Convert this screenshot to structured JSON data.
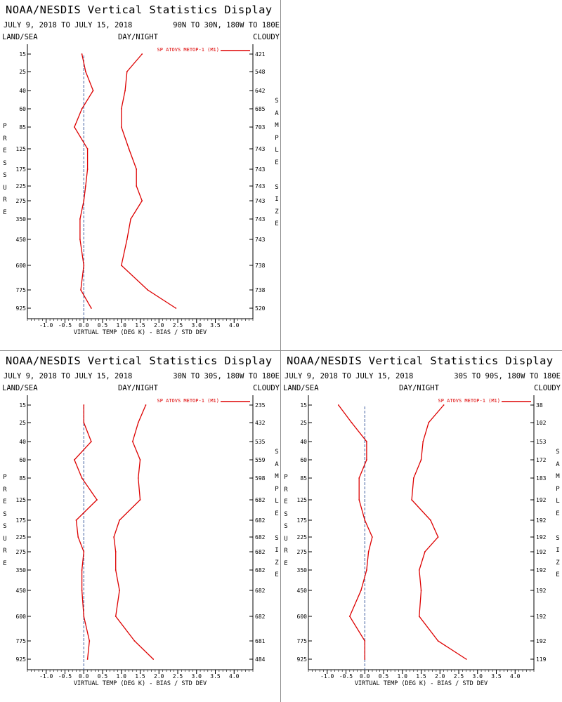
{
  "colors": {
    "line": "#dd0000",
    "axis": "#000000",
    "zero_line": "#4060a0"
  },
  "legend_sample": "SP ATOVS METOP-1 (M1)",
  "panels": [
    {
      "title": "NOAA/NESDIS Vertical Statistics Display",
      "dates": "JULY 9, 2018 TO JULY 15, 2018",
      "region": "90N TO 30N, 180W TO 180E",
      "land_sea": "LAND/SEA",
      "day_night": "DAY/NIGHT",
      "cloud": "CLOUDY",
      "left_label": [
        "P",
        "R",
        "E",
        "S",
        "S",
        "U",
        "R",
        "E"
      ],
      "right_label": [
        "S",
        "A",
        "M",
        "P",
        "L",
        "E",
        "",
        "S",
        "I",
        "Z",
        "E"
      ]
    },
    {
      "title": "NOAA/NESDIS Vertical Statistics Display",
      "dates": "JULY 9, 2018 TO JULY 15, 2018",
      "region": "30N TO 30S, 180W TO 180E",
      "land_sea": "LAND/SEA",
      "day_night": "DAY/NIGHT",
      "cloud": "CLOUDY",
      "left_label": [
        "P",
        "R",
        "E",
        "S",
        "S",
        "U",
        "R",
        "E"
      ],
      "right_label": [
        "S",
        "A",
        "M",
        "P",
        "L",
        "E",
        "",
        "S",
        "I",
        "Z",
        "E"
      ]
    },
    {
      "title": "NOAA/NESDIS Vertical Statistics Display",
      "dates": "JULY 9, 2018 TO JULY 15, 2018",
      "region": "30S TO 90S, 180W TO 180E",
      "land_sea": "LAND/SEA",
      "day_night": "DAY/NIGHT",
      "cloud": "CLOUDY",
      "left_label": [
        "P",
        "R",
        "E",
        "S",
        "S",
        "U",
        "R",
        "E"
      ],
      "right_label": [
        "S",
        "A",
        "M",
        "P",
        "L",
        "E",
        "",
        "S",
        "I",
        "Z",
        "E"
      ]
    }
  ],
  "chart_data": [
    {
      "type": "line",
      "xlabel": "VIRTUAL TEMP (DEG K) - BIAS / STD DEV",
      "xlim": [
        -1.5,
        4.5
      ],
      "xticks": [
        -1.0,
        -0.5,
        0.0,
        0.5,
        1.0,
        1.5,
        2.0,
        2.5,
        3.0,
        3.5,
        4.0
      ],
      "xtick_labels": [
        "-1.0",
        "-0.5",
        "0.0",
        "0.5",
        "1.0",
        "1.5",
        "2.0",
        "2.5",
        "3.0",
        "3.5",
        "4.0"
      ],
      "y_pressure": [
        "15",
        "25",
        "40",
        "60",
        "85",
        "125",
        "175",
        "225",
        "275",
        "350",
        "450",
        "600",
        "775",
        "925"
      ],
      "sample_size": [
        "421",
        "548",
        "642",
        "685",
        "703",
        "743",
        "743",
        "743",
        "743",
        "743",
        "743",
        "738",
        "738",
        "520"
      ],
      "series": [
        {
          "name": "SP ATOVS METOP-1 (M1)",
          "kind": "bias",
          "values": [
            -0.05,
            0.05,
            0.25,
            -0.05,
            -0.25,
            0.1,
            0.1,
            0.05,
            0.0,
            -0.1,
            -0.1,
            0.0,
            -0.08,
            0.2
          ]
        },
        {
          "kind": "std_dev",
          "values": [
            1.55,
            1.15,
            1.1,
            1.0,
            1.0,
            1.2,
            1.4,
            1.4,
            1.55,
            1.25,
            1.15,
            1.0,
            1.7,
            2.45
          ]
        }
      ]
    },
    {
      "type": "line",
      "xlabel": "VIRTUAL TEMP (DEG K) - BIAS / STD DEV",
      "xlim": [
        -1.5,
        4.5
      ],
      "xticks": [
        -1.0,
        -0.5,
        0.0,
        0.5,
        1.0,
        1.5,
        2.0,
        2.5,
        3.0,
        3.5,
        4.0
      ],
      "xtick_labels": [
        "-1.0",
        "-0.5",
        "0.0",
        "0.5",
        "1.0",
        "1.5",
        "2.0",
        "2.5",
        "3.0",
        "3.5",
        "4.0"
      ],
      "y_pressure": [
        "15",
        "25",
        "40",
        "60",
        "85",
        "125",
        "175",
        "225",
        "275",
        "350",
        "450",
        "600",
        "775",
        "925"
      ],
      "sample_size": [
        "235",
        "432",
        "535",
        "559",
        "598",
        "682",
        "682",
        "682",
        "682",
        "682",
        "682",
        "682",
        "681",
        "484"
      ],
      "series": [
        {
          "name": "SP ATOVS METOP-1 (M1)",
          "kind": "bias",
          "values": [
            0.0,
            0.0,
            0.2,
            -0.25,
            -0.05,
            0.35,
            -0.2,
            -0.15,
            0.0,
            -0.05,
            -0.05,
            0.0,
            0.15,
            0.1
          ]
        },
        {
          "kind": "std_dev",
          "values": [
            1.65,
            1.45,
            1.3,
            1.5,
            1.45,
            1.5,
            0.95,
            0.8,
            0.85,
            0.85,
            0.95,
            0.85,
            1.35,
            1.85
          ]
        }
      ]
    },
    {
      "type": "line",
      "xlabel": "VIRTUAL TEMP (DEG K) - BIAS / STD DEV",
      "xlim": [
        -1.5,
        4.5
      ],
      "xticks": [
        -1.0,
        -0.5,
        0.0,
        0.5,
        1.0,
        1.5,
        2.0,
        2.5,
        3.0,
        3.5,
        4.0
      ],
      "xtick_labels": [
        "-1.0",
        "-0.5",
        "0.0",
        "0.5",
        "1.0",
        "1.5",
        "2.0",
        "2.5",
        "3.0",
        "3.5",
        "4.0"
      ],
      "y_pressure": [
        "15",
        "25",
        "40",
        "60",
        "85",
        "125",
        "175",
        "225",
        "275",
        "350",
        "450",
        "600",
        "775",
        "925"
      ],
      "sample_size": [
        "38",
        "102",
        "153",
        "172",
        "183",
        "192",
        "192",
        "192",
        "192",
        "192",
        "192",
        "192",
        "192",
        "119"
      ],
      "series": [
        {
          "name": "SP ATOVS METOP-1 (M1)",
          "kind": "bias",
          "values": [
            -0.7,
            -0.35,
            0.05,
            0.05,
            -0.15,
            -0.15,
            0.0,
            0.2,
            0.1,
            0.05,
            -0.1,
            -0.4,
            0.0,
            0.0
          ]
        },
        {
          "kind": "std_dev",
          "values": [
            2.1,
            1.7,
            1.55,
            1.5,
            1.3,
            1.25,
            1.75,
            1.95,
            1.6,
            1.45,
            1.5,
            1.45,
            1.95,
            2.7
          ]
        }
      ]
    }
  ]
}
